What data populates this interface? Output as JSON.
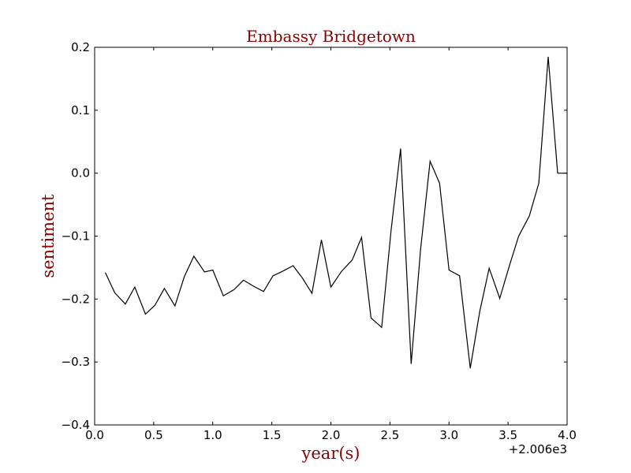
{
  "chart_data": {
    "type": "line",
    "title": "Embassy Bridgetown",
    "xlabel": "year(s)",
    "ylabel": "sentiment",
    "x_offset_label": "+2.006e3",
    "xlim": [
      0.0,
      4.0
    ],
    "ylim": [
      -0.4,
      0.2
    ],
    "x_ticks": [
      0.0,
      0.5,
      1.0,
      1.5,
      2.0,
      2.5,
      3.0,
      3.5,
      4.0
    ],
    "x_tick_labels": [
      "0.0",
      "0.5",
      "1.0",
      "1.5",
      "2.0",
      "2.5",
      "3.0",
      "3.5",
      "4.0"
    ],
    "y_ticks": [
      -0.4,
      -0.3,
      -0.2,
      -0.1,
      0.0,
      0.1,
      0.2
    ],
    "y_tick_labels": [
      "−0.4",
      "−0.3",
      "−0.2",
      "−0.1",
      "0.0",
      "0.1",
      "0.2"
    ],
    "grid": false,
    "colors": {
      "line": "#000000",
      "label_text": "#8b0000"
    },
    "series": [
      {
        "x": [
          0.09,
          0.17,
          0.26,
          0.34,
          0.43,
          0.51,
          0.59,
          0.68,
          0.76,
          0.84,
          0.93,
          1.0,
          1.09,
          1.18,
          1.26,
          1.34,
          1.43,
          1.51,
          1.59,
          1.68,
          1.76,
          1.84,
          1.92,
          2.0,
          2.09,
          2.18,
          2.26,
          2.34,
          2.43,
          2.51,
          2.59,
          2.68,
          2.76,
          2.84,
          2.92,
          3.0,
          3.09,
          3.18,
          3.26,
          3.34,
          3.43,
          3.51,
          3.59,
          3.68,
          3.76,
          3.84,
          3.92,
          4.0
        ],
        "values": [
          -0.158,
          -0.19,
          -0.208,
          -0.181,
          -0.224,
          -0.21,
          -0.183,
          -0.211,
          -0.164,
          -0.132,
          -0.157,
          -0.154,
          -0.195,
          -0.185,
          -0.17,
          -0.179,
          -0.188,
          -0.163,
          -0.156,
          -0.147,
          -0.167,
          -0.191,
          -0.106,
          -0.181,
          -0.156,
          -0.138,
          -0.102,
          -0.23,
          -0.245,
          -0.09,
          0.039,
          -0.303,
          -0.12,
          0.019,
          -0.016,
          -0.154,
          -0.163,
          -0.31,
          -0.22,
          -0.151,
          -0.199,
          -0.148,
          -0.1,
          -0.068,
          -0.016,
          0.185,
          0.0,
          0.0
        ]
      }
    ]
  }
}
